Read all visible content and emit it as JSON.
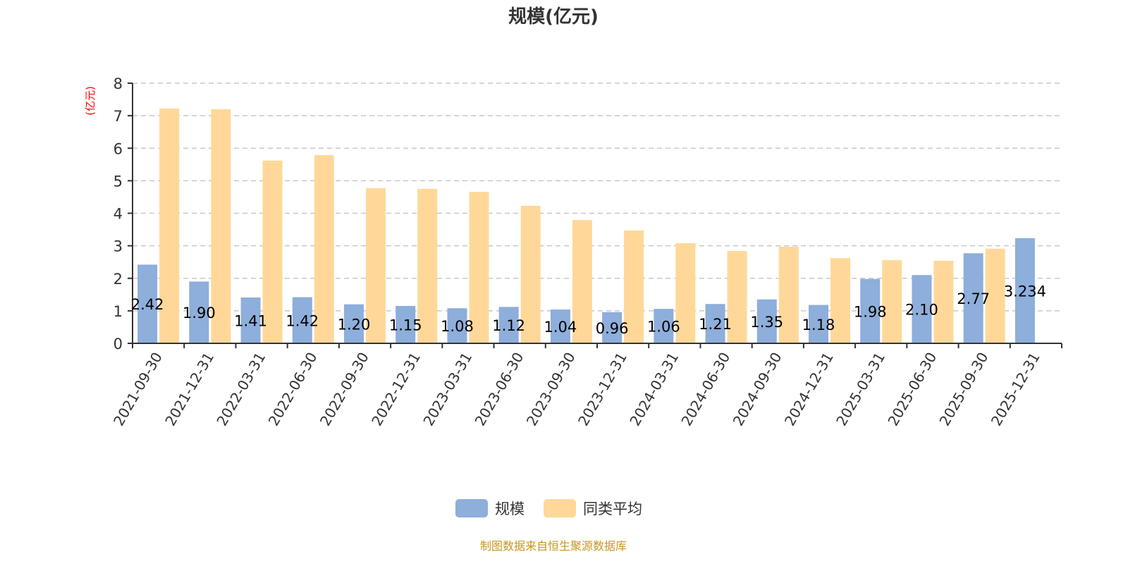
{
  "chart_data": {
    "type": "bar",
    "title": "规模(亿元)",
    "ylabel": "(亿元)",
    "ylim": [
      0,
      8
    ],
    "yticks": [
      0,
      1,
      2,
      3,
      4,
      5,
      6,
      7,
      8
    ],
    "grid": true,
    "legend_position": "bottom",
    "categories": [
      "2021-09-30",
      "2021-12-31",
      "2022-03-31",
      "2022-06-30",
      "2022-09-30",
      "2022-12-31",
      "2023-03-31",
      "2023-06-30",
      "2023-09-30",
      "2023-12-31",
      "2024-03-31",
      "2024-06-30",
      "2024-09-30",
      "2024-12-31",
      "2025-03-31",
      "2025-06-30",
      "2025-09-30",
      "2025-12-31"
    ],
    "series": [
      {
        "name": "规模",
        "color": "#8eaedb",
        "values": [
          2.42,
          1.9,
          1.41,
          1.42,
          1.2,
          1.15,
          1.08,
          1.12,
          1.04,
          0.96,
          1.06,
          1.21,
          1.35,
          1.18,
          1.98,
          2.1,
          2.77,
          3.234
        ],
        "labels": [
          "2.42",
          "1.90",
          "1.41",
          "1.42",
          "1.20",
          "1.15",
          "1.08",
          "1.12",
          "1.04",
          "0.96",
          "1.06",
          "1.21",
          "1.35",
          "1.18",
          "1.98",
          "2.10",
          "2.77",
          "3.234"
        ]
      },
      {
        "name": "同类平均",
        "color": "#ffd899",
        "values": [
          7.22,
          7.2,
          5.62,
          5.79,
          4.77,
          4.75,
          4.66,
          4.23,
          3.79,
          3.47,
          3.08,
          2.84,
          2.97,
          2.62,
          2.56,
          2.54,
          2.91,
          null
        ]
      }
    ]
  },
  "footer": "制图数据来自恒生聚源数据库"
}
